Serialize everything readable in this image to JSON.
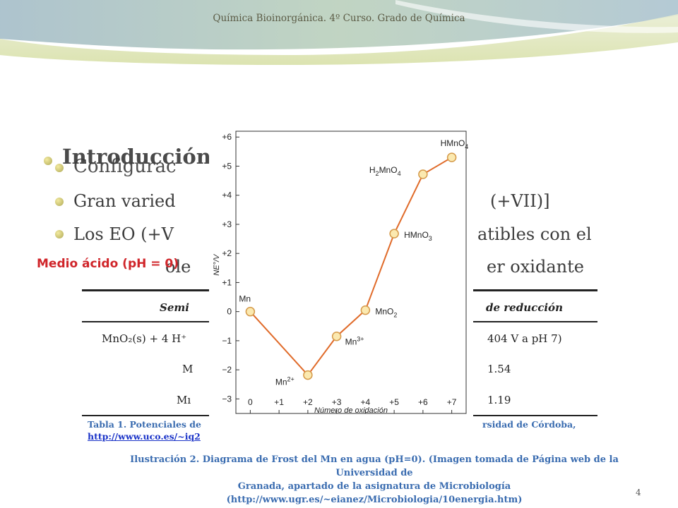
{
  "header": {
    "title": "Química Bioinorgánica. 4º Curso. Grado de Química"
  },
  "slide": {
    "items": [
      {
        "text": "Introducción"
      },
      {
        "text": "Configurac"
      },
      {
        "text": "Gran varied"
      },
      {
        "text": "(+VII)]"
      },
      {
        "text": "Los EO (+V"
      },
      {
        "text": "atibles con el"
      },
      {
        "text": "ole"
      },
      {
        "text": "er oxidante"
      }
    ],
    "overlay_label": "Medio ácido (pH = 0)",
    "page_number": "4"
  },
  "table": {
    "header_left": "Semi",
    "header_right": "de reducción",
    "rows": [
      {
        "left": "MnO₂(s) + 4 H⁺",
        "right": "404 V a pH 7)"
      },
      {
        "left": "M",
        "right": "1.54"
      },
      {
        "left": "Mı",
        "right": "1.19"
      }
    ],
    "caption_left": "Tabla 1. Potenciales de",
    "caption_right": "rsidad de Córdoba,",
    "link_text": "http://www.uco.es/~iq2"
  },
  "figure_caption": {
    "line1": "Ilustración 2. Diagrama de Frost del Mn en agua (pH=0). (Imagen tomada de Página web de la Universidad de",
    "line2": "Granada, apartado de la asignatura de Microbiología",
    "line3": "(http://www.ugr.es/~eianez/Microbiologia/10energia.htm)"
  },
  "colors": {
    "line": "#e06b2a",
    "marker_fill": "#fbe9b0",
    "marker_stroke": "#d59a4a",
    "overlay_red": "#d0252a",
    "caption_blue": "#3a6cb0"
  },
  "chart_data": {
    "type": "line",
    "xlabel": "Número de oxidación",
    "ylabel": "NE°/V",
    "x_tick_labels": [
      "0",
      "+1",
      "+2",
      "+3",
      "+4",
      "+5",
      "+6",
      "+7"
    ],
    "y_tick_labels": [
      "+6",
      "+5",
      "+4",
      "+3",
      "+2",
      "+1",
      "0",
      "−1",
      "−2",
      "−3"
    ],
    "xlim": [
      -0.5,
      7.5
    ],
    "ylim": [
      -3.5,
      6.2
    ],
    "grid": false,
    "series": [
      {
        "points": [
          {
            "x": 0,
            "y": 0.0,
            "label": "Mn"
          },
          {
            "x": 2,
            "y": -2.18,
            "label": "Mn2+"
          },
          {
            "x": 3,
            "y": -0.85,
            "label": "Mn3+"
          },
          {
            "x": 4,
            "y": 0.05,
            "label": "MnO2"
          },
          {
            "x": 5,
            "y": 2.68,
            "label": "HMnO3"
          },
          {
            "x": 6,
            "y": 4.72,
            "label": "H2MnO4"
          },
          {
            "x": 7,
            "y": 5.3,
            "label": "HMnO4"
          }
        ]
      }
    ]
  }
}
